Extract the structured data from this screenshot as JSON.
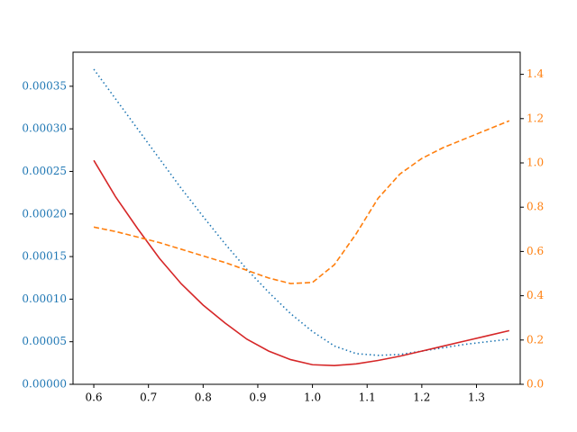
{
  "chart_data": {
    "type": "line",
    "x": [
      0.6,
      0.64,
      0.68,
      0.72,
      0.76,
      0.8,
      0.84,
      0.88,
      0.92,
      0.96,
      1.0,
      1.04,
      1.08,
      1.12,
      1.16,
      1.2,
      1.24,
      1.28,
      1.32,
      1.36
    ],
    "series": [
      {
        "color": "#1f77b4",
        "style": "dotted",
        "axis": "y",
        "values": [
          0.00037,
          0.000335,
          0.0003,
          0.000265,
          0.00023,
          0.000197,
          0.000165,
          0.000135,
          0.000108,
          8.3e-05,
          6.2e-05,
          4.5e-05,
          3.6e-05,
          3.4e-05,
          3.5e-05,
          3.9e-05,
          4.3e-05,
          4.7e-05,
          5e-05,
          5.3e-05
        ]
      },
      {
        "color": "#d62728",
        "style": "solid",
        "axis": "y",
        "values": [
          0.000263,
          0.00022,
          0.000183,
          0.000148,
          0.000118,
          9.3e-05,
          7.2e-05,
          5.3e-05,
          3.9e-05,
          2.9e-05,
          2.3e-05,
          2.2e-05,
          2.4e-05,
          2.8e-05,
          3.3e-05,
          3.9e-05,
          4.5e-05,
          5.1e-05,
          5.7e-05,
          6.3e-05
        ]
      },
      {
        "color": "#ff7f0e",
        "style": "dashed",
        "axis": "y2",
        "values": [
          0.71,
          0.69,
          0.665,
          0.64,
          0.61,
          0.58,
          0.55,
          0.515,
          0.48,
          0.455,
          0.46,
          0.54,
          0.68,
          0.84,
          0.95,
          1.02,
          1.07,
          1.11,
          1.15,
          1.19
        ]
      }
    ],
    "xlim": [
      0.562,
      1.38
    ],
    "xticks": [
      0.6,
      0.7,
      0.8,
      0.9,
      {
        "value": 1.0,
        "label": "1.0"
      },
      1.1,
      1.2,
      1.3
    ],
    "ylim": [
      0,
      0.00039
    ],
    "yticks": [
      {
        "value": 0,
        "label": "0.00000"
      },
      {
        "value": 5e-05,
        "label": "0.00005"
      },
      {
        "value": 0.0001,
        "label": "0.00010"
      },
      {
        "value": 0.00015,
        "label": "0.00015"
      },
      {
        "value": 0.0002,
        "label": "0.00020"
      },
      {
        "value": 0.00025,
        "label": "0.00025"
      },
      {
        "value": 0.0003,
        "label": "0.00030"
      },
      {
        "value": 0.00035,
        "label": "0.00035"
      }
    ],
    "ytick_color": "#1f77b4",
    "y2lim": [
      0,
      1.5
    ],
    "y2ticks": [
      {
        "value": 0,
        "label": "0.0"
      },
      0.2,
      0.4,
      0.6,
      0.8,
      {
        "value": 1.0,
        "label": "1.0"
      },
      1.2,
      1.4
    ],
    "y2tick_color": "#ff7f0e"
  }
}
